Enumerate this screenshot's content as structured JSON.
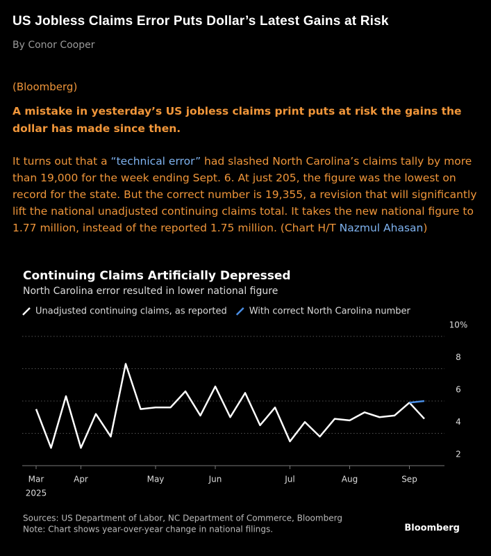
{
  "header": {
    "title": "US Jobless Claims Error Puts Dollar’s Latest Gains at Risk",
    "byline": "By Conor Cooper"
  },
  "article": {
    "source": "(Bloomberg)",
    "lead": "A mistake in yesterday’s US jobless claims print puts at risk the gains the dollar has made since then.",
    "body": [
      "It turns out that a ",
      "“technical error”",
      " had slashed North Carolina’s claims tally by more than 19,000 for the week ending Sept. 6. At just 205, the figure was the lowest on record for the state. But the correct number is 19,355, a revision that will significantly lift the national unadjusted continuing claims total. It takes the new national figure to 1.77 million, instead of the reported 1.75 million. (Chart H/T ",
      "Nazmul Ahasan",
      ")"
    ]
  },
  "chart_data": {
    "type": "line",
    "title": "Continuing Claims Artificially Depressed",
    "subtitle": "North Carolina error resulted in lower national figure",
    "categories": [
      "Mar",
      null,
      null,
      "Apr",
      null,
      null,
      null,
      null,
      "May",
      null,
      null,
      null,
      "Jun",
      null,
      null,
      null,
      null,
      "Jul",
      null,
      null,
      null,
      "Aug",
      null,
      null,
      null,
      "Sep",
      null
    ],
    "x_sublabel": "2025",
    "series": [
      {
        "name": "Unadjusted continuing claims, as reported",
        "color": "#ffffff",
        "values": [
          5.5,
          3.1,
          6.3,
          3.1,
          5.2,
          3.8,
          8.3,
          5.5,
          5.6,
          5.6,
          6.6,
          5.1,
          6.9,
          5.0,
          6.5,
          4.5,
          5.6,
          3.5,
          4.7,
          3.8,
          4.9,
          4.8,
          5.3,
          5.0,
          5.1,
          5.9,
          4.9
        ]
      },
      {
        "name": "With correct North Carolina number",
        "color": "#4a8fe6",
        "values": [
          null,
          null,
          null,
          null,
          null,
          null,
          null,
          null,
          null,
          null,
          null,
          null,
          null,
          null,
          null,
          null,
          null,
          null,
          null,
          null,
          null,
          null,
          null,
          null,
          null,
          5.9,
          6.0
        ]
      }
    ],
    "ylim": [
      2,
      10
    ],
    "yticks": [
      2,
      4,
      6,
      8,
      {
        "value": 10,
        "label": "10%"
      }
    ],
    "grid": true,
    "axis_side": "right",
    "sources": "Sources: US Department of Labor, NC Department of Commerce, Bloomberg",
    "note": "Note: Chart shows year-over-year change in national filings.",
    "logo": "Bloomberg"
  }
}
